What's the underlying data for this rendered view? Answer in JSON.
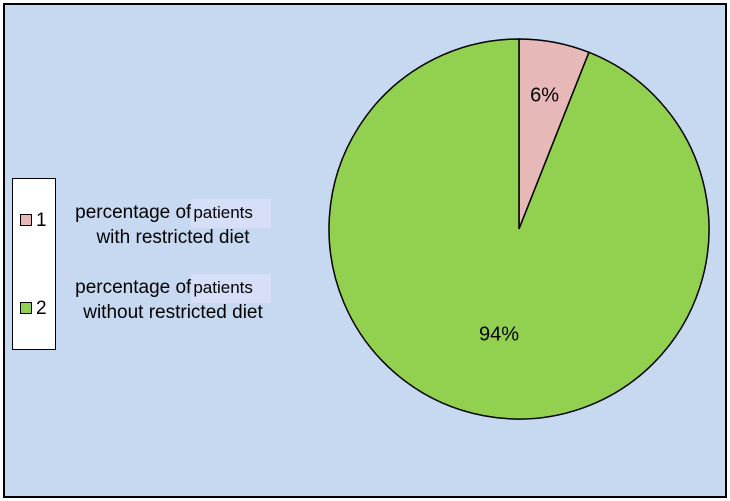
{
  "chart_data": {
    "type": "pie",
    "slices": [
      {
        "legend_index": "1",
        "label_line1": "percentage of",
        "label_word": "patients",
        "label_line2": "with restricted diet",
        "value": 6,
        "value_label": "6%",
        "color": "#e6b9b8"
      },
      {
        "legend_index": "2",
        "label_line1": "percentage of",
        "label_word": "patients",
        "label_line2": "without restricted diet",
        "value": 94,
        "value_label": "94%",
        "color": "#92d050"
      }
    ],
    "legend_position": "left",
    "background_color": "#c6d9f1",
    "edge_color": "#000000"
  }
}
